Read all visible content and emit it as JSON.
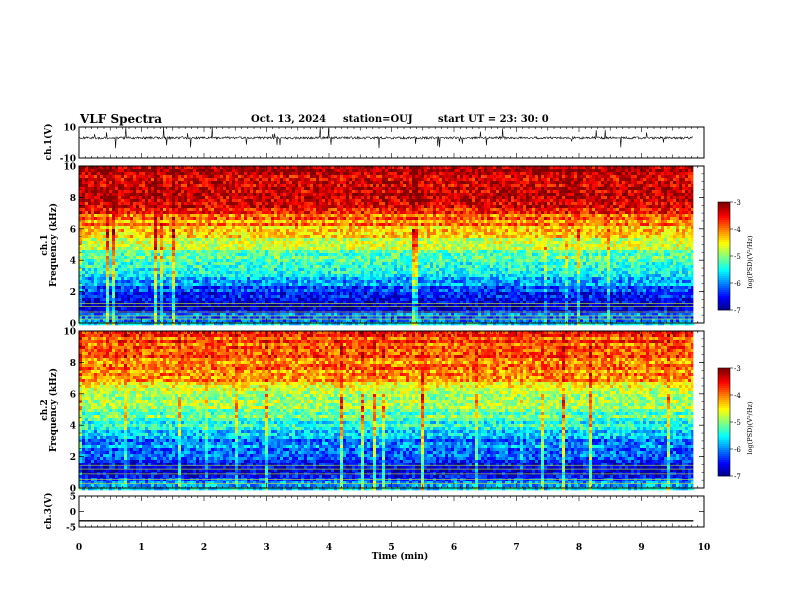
{
  "header": {
    "title": "VLF Spectra",
    "date": "Oct. 13, 2024",
    "station": "station=OUJ",
    "start_ut": "start UT =  23: 30: 0"
  },
  "chart_data": [
    {
      "type": "line",
      "panel": "waveform-ch1",
      "ylabel": "ch.1(V)",
      "ylim": [
        -10,
        10
      ],
      "y_ticks": [
        "10",
        "-10"
      ],
      "baseline": 3,
      "noise_amplitude": 1.5,
      "spikes": "frequent bursts reaching about ±4 V"
    },
    {
      "type": "heatmap",
      "panel": "spectrogram-ch1",
      "ylabel": "ch.1 Frequency (kHz)",
      "ylim": [
        0,
        10
      ],
      "y_ticks": [
        "0",
        "2",
        "4",
        "6",
        "8",
        "10"
      ],
      "colorbar": {
        "label": "log(PSD)(V²/Hz)",
        "range": [
          -7,
          -3
        ],
        "ticks": [
          "-3",
          "-4",
          "-5",
          "-6",
          "-7"
        ],
        "colormap": "jet"
      },
      "profile": [
        {
          "freq_khz": 0.0,
          "log_psd": -5.8
        },
        {
          "freq_khz": 1.0,
          "log_psd": -6.6
        },
        {
          "freq_khz": 2.0,
          "log_psd": -6.3
        },
        {
          "freq_khz": 3.0,
          "log_psd": -5.6
        },
        {
          "freq_khz": 4.0,
          "log_psd": -5.2
        },
        {
          "freq_khz": 5.0,
          "log_psd": -4.8
        },
        {
          "freq_khz": 6.0,
          "log_psd": -4.2
        },
        {
          "freq_khz": 7.0,
          "log_psd": -3.7
        },
        {
          "freq_khz": 8.0,
          "log_psd": -3.4
        },
        {
          "freq_khz": 10.0,
          "log_psd": -3.3
        }
      ]
    },
    {
      "type": "heatmap",
      "panel": "spectrogram-ch2",
      "ylabel": "ch.2 Frequency (kHz)",
      "ylim": [
        0,
        10
      ],
      "y_ticks": [
        "0",
        "2",
        "4",
        "6",
        "8",
        "10"
      ],
      "colorbar": {
        "label": "log(PSD)(V²/Hz)",
        "range": [
          -7,
          -3
        ],
        "ticks": [
          "-3",
          "-4",
          "-5",
          "-6",
          "-7"
        ],
        "colormap": "jet"
      },
      "profile": [
        {
          "freq_khz": 0.0,
          "log_psd": -5.7
        },
        {
          "freq_khz": 1.0,
          "log_psd": -6.5
        },
        {
          "freq_khz": 2.0,
          "log_psd": -6.3
        },
        {
          "freq_khz": 3.0,
          "log_psd": -5.9
        },
        {
          "freq_khz": 4.0,
          "log_psd": -5.4
        },
        {
          "freq_khz": 5.0,
          "log_psd": -5.0
        },
        {
          "freq_khz": 6.0,
          "log_psd": -4.6
        },
        {
          "freq_khz": 7.0,
          "log_psd": -4.2
        },
        {
          "freq_khz": 8.0,
          "log_psd": -3.9
        },
        {
          "freq_khz": 10.0,
          "log_psd": -3.7
        }
      ]
    },
    {
      "type": "line",
      "panel": "waveform-ch3",
      "ylabel": "ch.3(V)",
      "ylim": [
        -5,
        5
      ],
      "y_ticks": [
        "5",
        "0",
        "-5"
      ],
      "value": -3
    }
  ],
  "x_axis": {
    "label": "Time (min)",
    "xlim": [
      0,
      10
    ],
    "data_end": 9.83,
    "ticks": [
      "0",
      "1",
      "2",
      "3",
      "4",
      "5",
      "6",
      "7",
      "8",
      "9",
      "10"
    ]
  }
}
